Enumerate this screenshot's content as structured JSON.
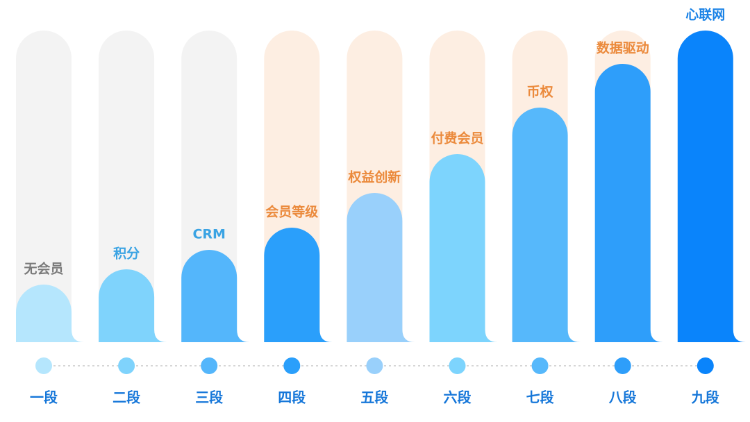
{
  "stages": [
    {
      "label": "无会员",
      "name": "一段"
    },
    {
      "label": "积分",
      "name": "二段"
    },
    {
      "label": "CRM",
      "name": "三段"
    },
    {
      "label": "会员等级",
      "name": "四段"
    },
    {
      "label": "权益创新",
      "name": "五段"
    },
    {
      "label": "付费会员",
      "name": "六段"
    },
    {
      "label": "币权",
      "name": "七段"
    },
    {
      "label": "数据驱动",
      "name": "八段"
    },
    {
      "label": "心联网",
      "name": "九段"
    }
  ]
}
